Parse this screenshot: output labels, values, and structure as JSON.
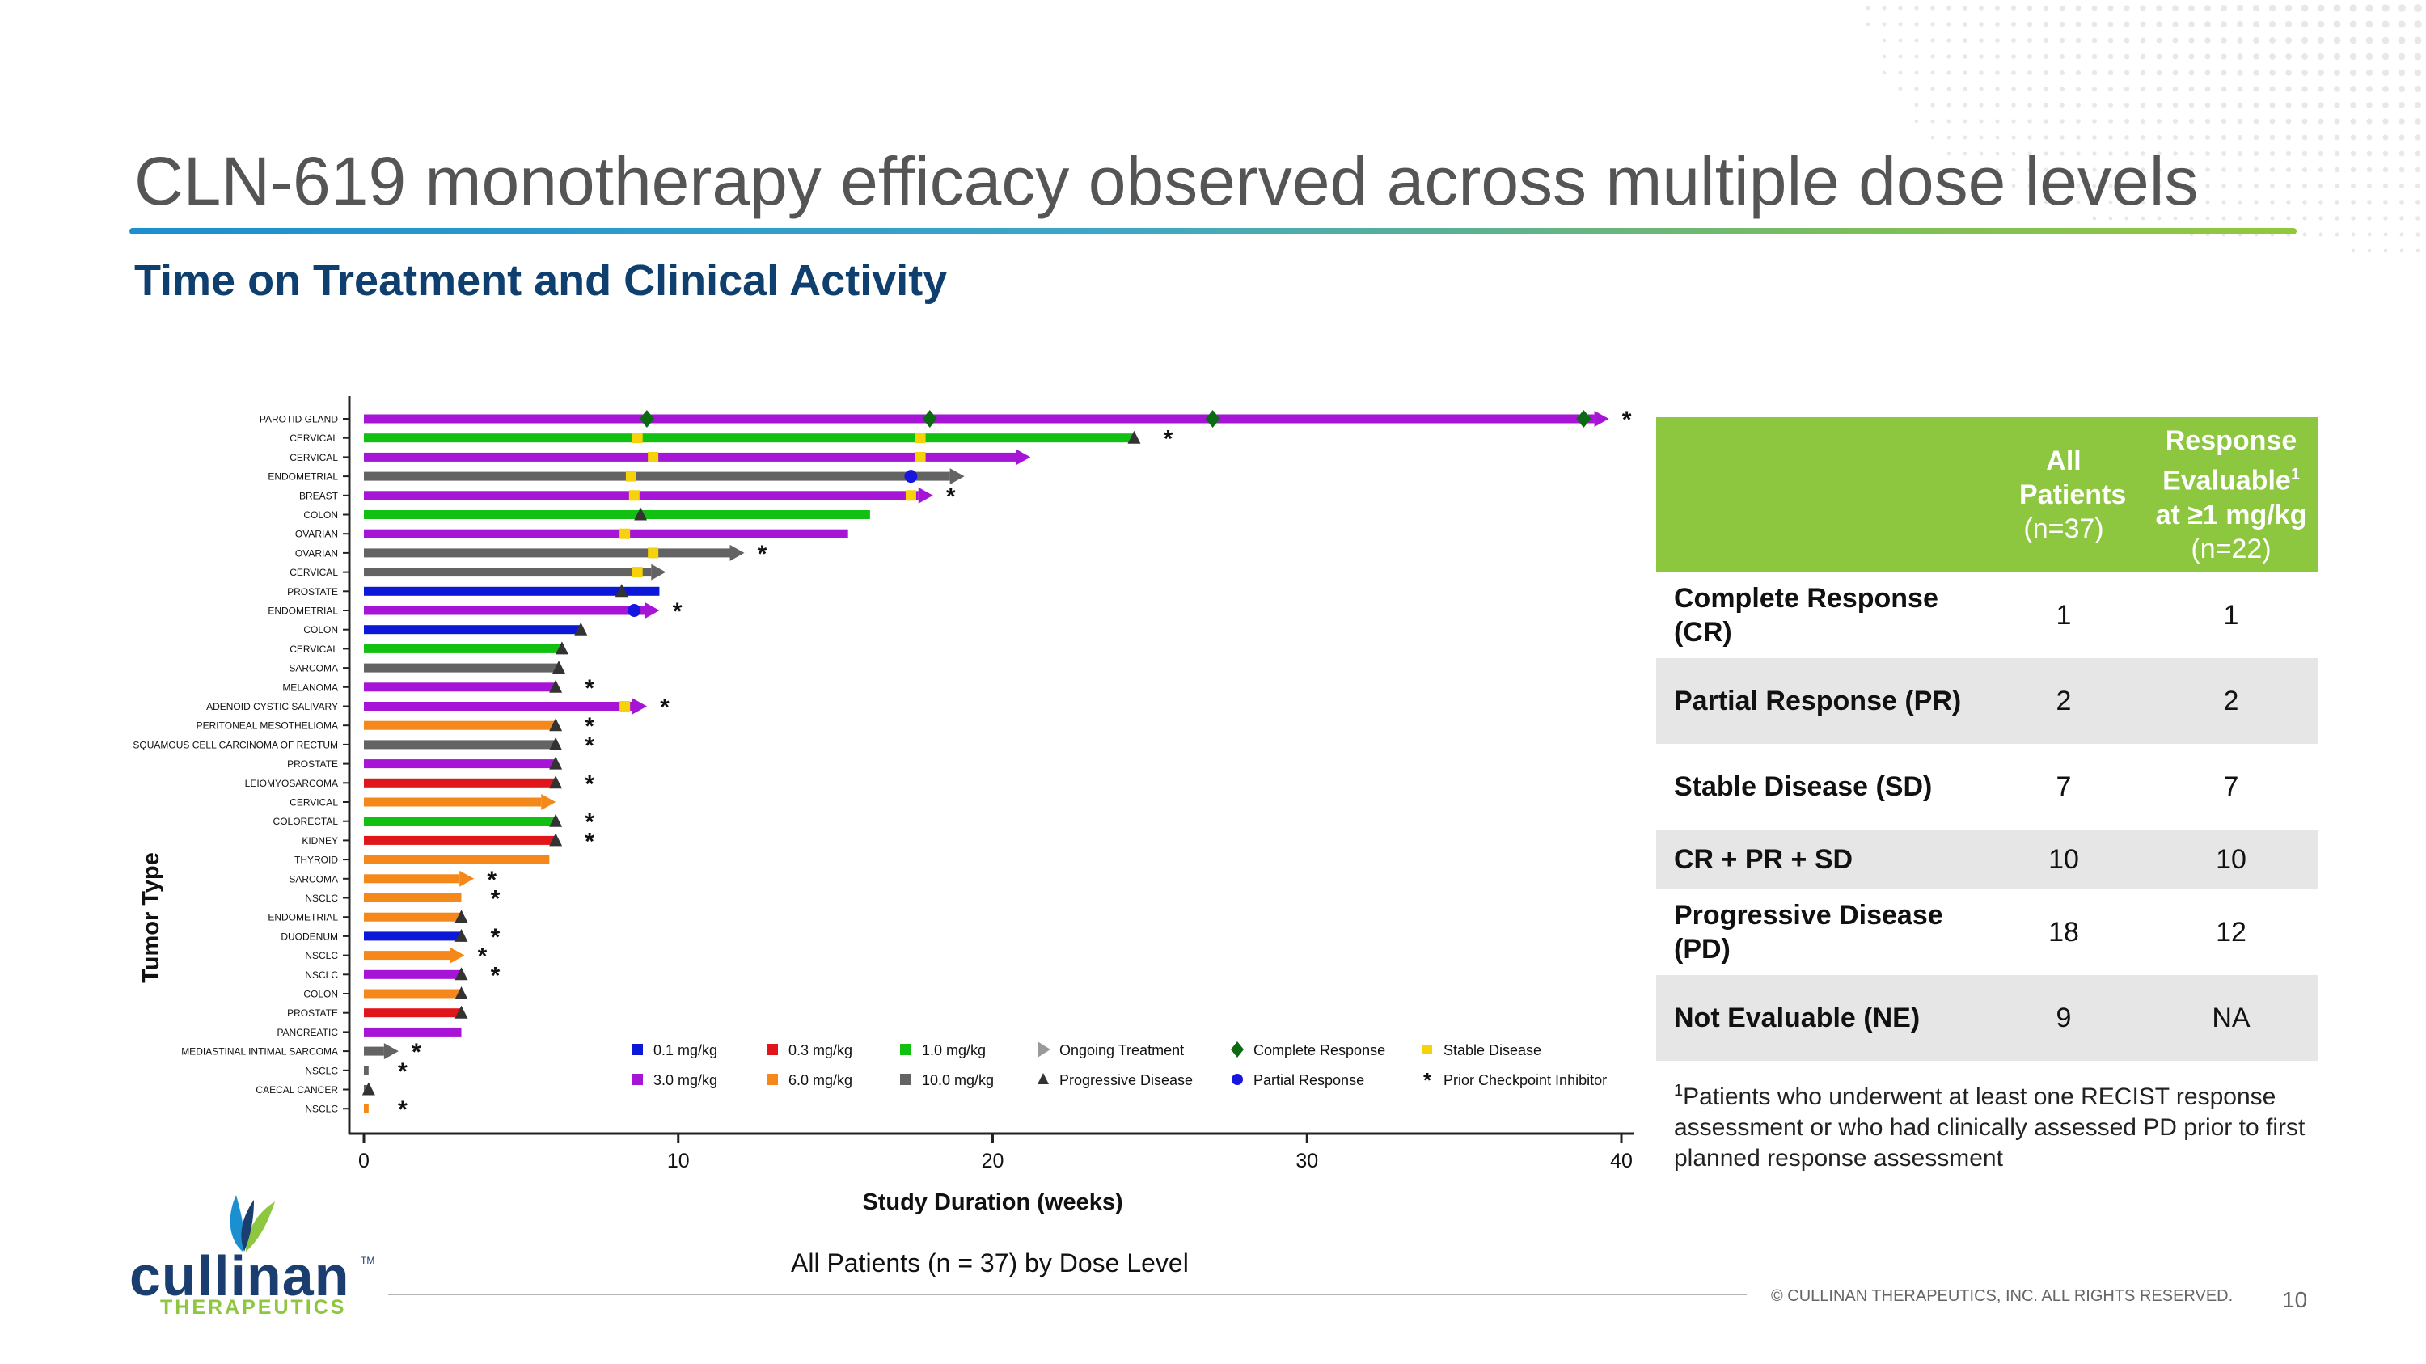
{
  "title": "CLN-619 monotherapy efficacy observed across multiple dose levels",
  "subtitle": "Time on Treatment and Clinical Activity",
  "caption": "All Patients (n = 37) by Dose Level",
  "colors": {
    "accent_green": "#8dc63f",
    "accent_blue": "#1c8fd0",
    "navy": "#0e3f6e",
    "dose": {
      "0.1": "#0b18d8",
      "0.3": "#e0161a",
      "1.0": "#12c012",
      "3.0": "#a614d6",
      "6.0": "#f5881a",
      "10.0": "#636363"
    },
    "complete_response": "#0b6b12",
    "partial_response": "#1616e0",
    "stable_disease": "#f5d20a",
    "progressive_disease": "#333333"
  },
  "chart_data": {
    "type": "swimmer",
    "xlabel": "Study Duration (weeks)",
    "ylabel": "Tumor Type",
    "xlim": [
      0,
      40
    ],
    "xticks": [
      0,
      10,
      20,
      30,
      40
    ],
    "legend": [
      {
        "symbol": "square",
        "color_key": "0.1",
        "label": "0.1 mg/kg"
      },
      {
        "symbol": "square",
        "color_key": "0.3",
        "label": "0.3 mg/kg"
      },
      {
        "symbol": "square",
        "color_key": "1.0",
        "label": "1.0 mg/kg"
      },
      {
        "symbol": "ongoing",
        "label": "Ongoing Treatment"
      },
      {
        "symbol": "cr",
        "label": "Complete Response"
      },
      {
        "symbol": "sd",
        "label": "Stable Disease"
      },
      {
        "symbol": "square",
        "color_key": "3.0",
        "label": "3.0 mg/kg"
      },
      {
        "symbol": "square",
        "color_key": "6.0",
        "label": "6.0 mg/kg"
      },
      {
        "symbol": "square",
        "color_key": "10.0",
        "label": "10.0 mg/kg"
      },
      {
        "symbol": "pd",
        "label": "Progressive Disease"
      },
      {
        "symbol": "pr",
        "label": "Partial Response"
      },
      {
        "symbol": "cpi",
        "label": "Prior Checkpoint Inhibitor"
      }
    ],
    "patients": [
      {
        "tumor": "PAROTID GLAND",
        "dose": "3.0",
        "duration": 39.5,
        "ongoing": true,
        "cpi": true,
        "events": [
          {
            "t": 9.0,
            "type": "cr"
          },
          {
            "t": 18.0,
            "type": "cr"
          },
          {
            "t": 27.0,
            "type": "cr"
          },
          {
            "t": 38.8,
            "type": "cr"
          }
        ]
      },
      {
        "tumor": "CERVICAL",
        "dose": "1.0",
        "duration": 24.5,
        "ongoing": false,
        "cpi": true,
        "events": [
          {
            "t": 8.7,
            "type": "sd"
          },
          {
            "t": 17.7,
            "type": "sd"
          },
          {
            "t": 24.5,
            "type": "pd"
          }
        ]
      },
      {
        "tumor": "CERVICAL",
        "dose": "3.0",
        "duration": 21.1,
        "ongoing": true,
        "cpi": false,
        "events": [
          {
            "t": 9.2,
            "type": "sd"
          },
          {
            "t": 17.7,
            "type": "sd"
          }
        ]
      },
      {
        "tumor": "ENDOMETRIAL",
        "dose": "10.0",
        "duration": 19.0,
        "ongoing": true,
        "cpi": false,
        "events": [
          {
            "t": 8.5,
            "type": "sd"
          },
          {
            "t": 17.4,
            "type": "pr"
          }
        ]
      },
      {
        "tumor": "BREAST",
        "dose": "3.0",
        "duration": 18.0,
        "ongoing": true,
        "cpi": true,
        "events": [
          {
            "t": 8.6,
            "type": "sd"
          },
          {
            "t": 17.4,
            "type": "sd"
          }
        ]
      },
      {
        "tumor": "COLON",
        "dose": "1.0",
        "duration": 16.1,
        "ongoing": false,
        "cpi": false,
        "events": [
          {
            "t": 8.8,
            "type": "pd"
          }
        ]
      },
      {
        "tumor": "OVARIAN",
        "dose": "3.0",
        "duration": 15.4,
        "ongoing": false,
        "cpi": false,
        "events": [
          {
            "t": 8.3,
            "type": "sd"
          }
        ]
      },
      {
        "tumor": "OVARIAN",
        "dose": "10.0",
        "duration": 12.0,
        "ongoing": true,
        "cpi": true,
        "events": [
          {
            "t": 9.2,
            "type": "sd"
          }
        ]
      },
      {
        "tumor": "CERVICAL",
        "dose": "10.0",
        "duration": 9.5,
        "ongoing": true,
        "cpi": false,
        "events": [
          {
            "t": 8.7,
            "type": "sd"
          }
        ]
      },
      {
        "tumor": "PROSTATE",
        "dose": "0.1",
        "duration": 9.4,
        "ongoing": false,
        "cpi": false,
        "events": [
          {
            "t": 8.2,
            "type": "pd"
          }
        ]
      },
      {
        "tumor": "ENDOMETRIAL",
        "dose": "3.0",
        "duration": 9.3,
        "ongoing": true,
        "cpi": true,
        "events": [
          {
            "t": 8.6,
            "type": "pr"
          }
        ]
      },
      {
        "tumor": "COLON",
        "dose": "0.1",
        "duration": 6.9,
        "ongoing": false,
        "cpi": false,
        "events": [
          {
            "t": 6.9,
            "type": "pd"
          }
        ]
      },
      {
        "tumor": "CERVICAL",
        "dose": "1.0",
        "duration": 6.3,
        "ongoing": false,
        "cpi": false,
        "events": [
          {
            "t": 6.3,
            "type": "pd"
          }
        ]
      },
      {
        "tumor": "SARCOMA",
        "dose": "10.0",
        "duration": 6.2,
        "ongoing": false,
        "cpi": false,
        "events": [
          {
            "t": 6.2,
            "type": "pd"
          }
        ]
      },
      {
        "tumor": "MELANOMA",
        "dose": "3.0",
        "duration": 6.1,
        "ongoing": false,
        "cpi": true,
        "events": [
          {
            "t": 6.1,
            "type": "pd"
          }
        ]
      },
      {
        "tumor": "ADENOID CYSTIC SALIVARY",
        "dose": "3.0",
        "duration": 8.9,
        "ongoing": true,
        "cpi": true,
        "events": [
          {
            "t": 8.3,
            "type": "sd"
          }
        ]
      },
      {
        "tumor": "PERITONEAL MESOTHELIOMA",
        "dose": "6.0",
        "duration": 6.1,
        "ongoing": false,
        "cpi": true,
        "events": [
          {
            "t": 6.1,
            "type": "pd"
          }
        ]
      },
      {
        "tumor": "SQUAMOUS CELL CARCINOMA OF RECTUM",
        "dose": "10.0",
        "duration": 6.1,
        "ongoing": false,
        "cpi": true,
        "events": [
          {
            "t": 6.1,
            "type": "pd"
          }
        ]
      },
      {
        "tumor": "PROSTATE",
        "dose": "3.0",
        "duration": 6.1,
        "ongoing": false,
        "cpi": false,
        "events": [
          {
            "t": 6.1,
            "type": "pd"
          }
        ]
      },
      {
        "tumor": "LEIOMYOSARCOMA",
        "dose": "0.3",
        "duration": 6.1,
        "ongoing": false,
        "cpi": true,
        "events": [
          {
            "t": 6.1,
            "type": "pd"
          }
        ]
      },
      {
        "tumor": "CERVICAL",
        "dose": "6.0",
        "duration": 6.0,
        "ongoing": true,
        "cpi": false,
        "events": []
      },
      {
        "tumor": "COLORECTAL",
        "dose": "1.0",
        "duration": 6.1,
        "ongoing": false,
        "cpi": true,
        "events": [
          {
            "t": 6.1,
            "type": "pd"
          }
        ]
      },
      {
        "tumor": "KIDNEY",
        "dose": "0.3",
        "duration": 6.1,
        "ongoing": false,
        "cpi": true,
        "events": [
          {
            "t": 6.1,
            "type": "pd"
          }
        ]
      },
      {
        "tumor": "THYROID",
        "dose": "6.0",
        "duration": 5.9,
        "ongoing": false,
        "cpi": false,
        "events": []
      },
      {
        "tumor": "SARCOMA",
        "dose": "6.0",
        "duration": 3.4,
        "ongoing": true,
        "cpi": true,
        "events": []
      },
      {
        "tumor": "NSCLC",
        "dose": "6.0",
        "duration": 3.1,
        "ongoing": false,
        "cpi": true,
        "events": []
      },
      {
        "tumor": "ENDOMETRIAL",
        "dose": "6.0",
        "duration": 3.1,
        "ongoing": false,
        "cpi": false,
        "events": [
          {
            "t": 3.1,
            "type": "pd"
          }
        ]
      },
      {
        "tumor": "DUODENUM",
        "dose": "0.1",
        "duration": 3.1,
        "ongoing": false,
        "cpi": true,
        "events": [
          {
            "t": 3.1,
            "type": "pd"
          }
        ]
      },
      {
        "tumor": "NSCLC",
        "dose": "6.0",
        "duration": 3.1,
        "ongoing": true,
        "cpi": true,
        "events": []
      },
      {
        "tumor": "NSCLC",
        "dose": "3.0",
        "duration": 3.1,
        "ongoing": false,
        "cpi": true,
        "events": [
          {
            "t": 3.1,
            "type": "pd"
          }
        ]
      },
      {
        "tumor": "COLON",
        "dose": "6.0",
        "duration": 3.1,
        "ongoing": false,
        "cpi": false,
        "events": [
          {
            "t": 3.1,
            "type": "pd"
          }
        ]
      },
      {
        "tumor": "PROSTATE",
        "dose": "0.3",
        "duration": 3.1,
        "ongoing": false,
        "cpi": false,
        "events": [
          {
            "t": 3.1,
            "type": "pd"
          }
        ]
      },
      {
        "tumor": "PANCREATIC",
        "dose": "3.0",
        "duration": 3.1,
        "ongoing": false,
        "cpi": false,
        "events": []
      },
      {
        "tumor": "MEDIASTINAL INTIMAL SARCOMA",
        "dose": "10.0",
        "duration": 1.0,
        "ongoing": true,
        "cpi": true,
        "events": []
      },
      {
        "tumor": "NSCLC",
        "dose": "10.0",
        "duration": 0.15,
        "ongoing": false,
        "cpi": true,
        "events": []
      },
      {
        "tumor": "CAECAL CANCER",
        "dose": "10.0",
        "duration": 0.15,
        "ongoing": false,
        "cpi": false,
        "events": [
          {
            "t": 0.15,
            "type": "pd"
          }
        ]
      },
      {
        "tumor": "NSCLC",
        "dose": "6.0",
        "duration": 0.15,
        "ongoing": false,
        "cpi": true,
        "events": []
      }
    ]
  },
  "table": {
    "headers": {
      "col1": "All Patients",
      "col1_n": "(n=37)",
      "col2_a": "Response Evaluable",
      "col2_sup": "1",
      "col2_b": "at ≥1 mg/kg",
      "col2_n": "(n=22)"
    },
    "rows": [
      {
        "label": "Complete Response (CR)",
        "all": "1",
        "eval": "1"
      },
      {
        "label": "Partial Response (PR)",
        "all": "2",
        "eval": "2"
      },
      {
        "label": "Stable Disease (SD)",
        "all": "7",
        "eval": "7"
      },
      {
        "label": "CR + PR + SD",
        "all": "10",
        "eval": "10"
      },
      {
        "label": "Progressive Disease (PD)",
        "all": "18",
        "eval": "12"
      },
      {
        "label": "Not Evaluable (NE)",
        "all": "9",
        "eval": "NA"
      }
    ],
    "footnote_sup": "1",
    "footnote": "Patients who underwent at least one RECIST response assessment or who had clinically assessed PD prior to first planned response assessment"
  },
  "footer": {
    "copyright": "© CULLINAN THERAPEUTICS, INC. ALL RIGHTS RESERVED.",
    "page_number": "10",
    "logo_word": "cullinan",
    "logo_tm": "TM",
    "logo_sub": "THERAPEUTICS"
  }
}
